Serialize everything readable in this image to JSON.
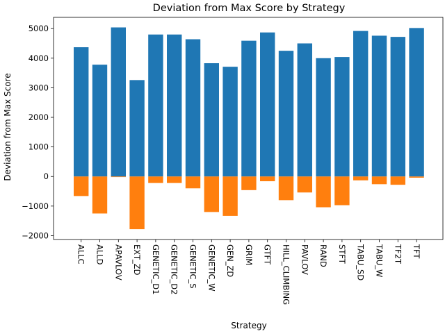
{
  "chart_data": {
    "type": "bar",
    "title": "Deviation from Max Score by Strategy",
    "xlabel": "Strategy",
    "ylabel": "Deviation from Max Score",
    "ylim": [
      -2130,
      5380
    ],
    "yticks": [
      -2000,
      -1000,
      0,
      1000,
      2000,
      3000,
      4000,
      5000
    ],
    "ytick_labels": [
      "−2000",
      "−1000",
      "0",
      "1000",
      "2000",
      "3000",
      "4000",
      "5000"
    ],
    "categories": [
      "ALLC",
      "ALLD",
      "APAVLOV",
      "EXT_ZD",
      "GENETIC_D1",
      "GENETIC_D2",
      "GENETIC_S",
      "GENETIC_W",
      "GEN_ZD",
      "GRIM",
      "GTFT",
      "HILL_CLIMBING",
      "PAVLOV",
      "RAND",
      "STFT",
      "TABU_SD",
      "TABU_W",
      "TF2T",
      "TFT"
    ],
    "series": [
      {
        "color": "#1f77b4",
        "values": [
          4370,
          3780,
          5040,
          3260,
          4800,
          4800,
          4640,
          3830,
          3710,
          4590,
          4870,
          4250,
          4500,
          4000,
          4040,
          4920,
          4760,
          4720,
          5020
        ]
      },
      {
        "color": "#ff7f0e",
        "values": [
          -660,
          -1250,
          -20,
          -1780,
          -220,
          -220,
          -400,
          -1200,
          -1330,
          -460,
          -160,
          -800,
          -540,
          -1040,
          -970,
          -130,
          -260,
          -280,
          -40
        ]
      }
    ],
    "grid": false,
    "legend": "none"
  }
}
